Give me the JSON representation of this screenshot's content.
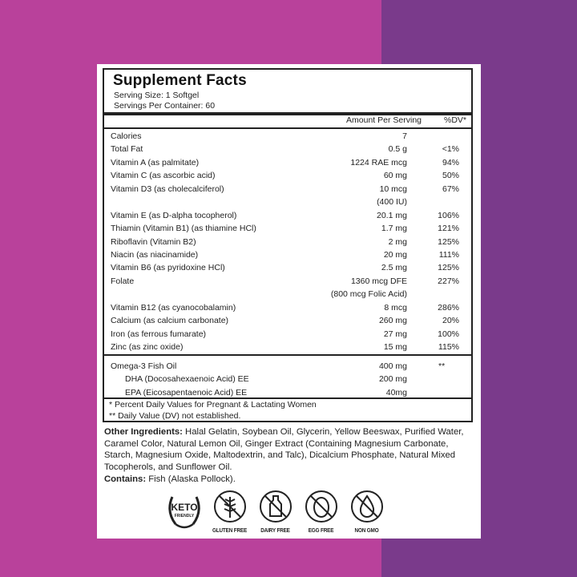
{
  "colors": {
    "left_bg": "#b9419b",
    "right_bg": "#7a3a8b"
  },
  "facts": {
    "title": "Supplement Facts",
    "serving_size": "Serving Size: 1 Softgel",
    "servings_per_container": "Servings Per Container: 60",
    "col_amount": "Amount Per Serving",
    "col_dv": "%DV*",
    "rows": [
      {
        "label": "Calories",
        "amount": "7",
        "dv": ""
      },
      {
        "label": "Total Fat",
        "amount": "0.5 g",
        "dv": "<1%"
      },
      {
        "label": "Vitamin A (as palmitate)",
        "amount": "1224 RAE mcg",
        "dv": "94%"
      },
      {
        "label": "Vitamin C (as ascorbic acid)",
        "amount": "60 mg",
        "dv": "50%"
      },
      {
        "label": "Vitamin D3 (as cholecalciferol)",
        "amount": "10 mcg",
        "dv": "67%"
      },
      {
        "label": "",
        "amount": "(400 IU)",
        "dv": ""
      },
      {
        "label": "Vitamin E (as D-alpha tocopherol)",
        "amount": "20.1 mg",
        "dv": "106%"
      },
      {
        "label": "Thiamin (Vitamin B1) (as thiamine HCl)",
        "amount": "1.7 mg",
        "dv": "121%"
      },
      {
        "label": "Riboflavin (Vitamin B2)",
        "amount": "2 mg",
        "dv": "125%"
      },
      {
        "label": "Niacin (as niacinamide)",
        "amount": "20 mg",
        "dv": "111%"
      },
      {
        "label": "Vitamin B6 (as pyridoxine HCl)",
        "amount": "2.5 mg",
        "dv": "125%"
      },
      {
        "label": "Folate",
        "amount": "1360 mcg DFE",
        "dv": "227%"
      },
      {
        "label": "",
        "amount": "(800 mcg Folic Acid)",
        "dv": ""
      },
      {
        "label": "Vitamin B12 (as cyanocobalamin)",
        "amount": "8 mcg",
        "dv": "286%"
      },
      {
        "label": "Calcium (as calcium carbonate)",
        "amount": "260 mg",
        "dv": "20%"
      },
      {
        "label": "Iron (as ferrous fumarate)",
        "amount": "27 mg",
        "dv": "100%"
      },
      {
        "label": "Zinc (as zinc oxide)",
        "amount": "15 mg",
        "dv": "115%"
      }
    ],
    "omega": [
      {
        "label": "Omega-3 Fish Oil",
        "amount": "400 mg",
        "dv": "**"
      },
      {
        "label": "DHA (Docosahexaenoic Acid) EE",
        "amount": "200 mg",
        "dv": ""
      },
      {
        "label": "EPA (Eicosapentaenoic Acid) EE",
        "amount": "40mg",
        "dv": ""
      }
    ],
    "footnote1": "* Percent Daily Values for Pregnant & Lactating Women",
    "footnote2": "** Daily Value (DV) not established."
  },
  "other_ingredients": {
    "label": "Other Ingredients:",
    "text": " Halal Gelatin, Soybean Oil, Glycerin, Yellow Beeswax, Purified Water, Caramel Color, Natural Lemon Oil, Ginger Extract (Containing Magnesium Carbonate, Starch, Magnesium Oxide, Maltodextrin, and Talc), Dicalcium Phosphate, Natural Mixed Tocopherols, and Sunflower Oil."
  },
  "contains": {
    "label": "Contains:",
    "text": " Fish (Alaska Pollock)."
  },
  "badges": [
    {
      "icon": "keto-laurel-icon",
      "top": "KETO",
      "bottom": "FRIENDLY"
    },
    {
      "icon": "wheat-crossed-icon",
      "caption": "GLUTEN FREE"
    },
    {
      "icon": "milk-bottle-crossed-icon",
      "caption": "DAIRY FREE"
    },
    {
      "icon": "egg-crossed-icon",
      "caption": "EGG FREE"
    },
    {
      "icon": "drop-crossed-icon",
      "caption": "NON GMO"
    }
  ]
}
